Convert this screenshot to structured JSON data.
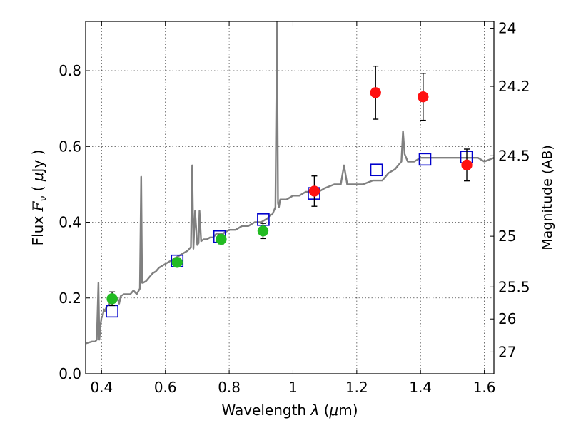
{
  "chart_data": {
    "type": "scatter",
    "xlabel": "Wavelength",
    "xlabel_symbol": "λ",
    "xlabel_unit_open": "(",
    "xlabel_unit_mu": "μ",
    "xlabel_unit_rest": "m)",
    "ylabel": "Flux",
    "ylabel_symbol": "F",
    "ylabel_subscript": "ν",
    "ylabel_unit_open": "(",
    "ylabel_unit_mu": "μ",
    "ylabel_unit_rest": "Jy",
    "ylabel_unit_close": ")",
    "y2label": "Magnitude (AB)",
    "xlim": [
      0.35,
      1.63
    ],
    "ylim": [
      0.0,
      0.93
    ],
    "grid": true,
    "x_ticks": [
      {
        "value": 0.4,
        "label": "0.4"
      },
      {
        "value": 0.6,
        "label": "0.6"
      },
      {
        "value": 0.8,
        "label": "0.8"
      },
      {
        "value": 1.0,
        "label": "1"
      },
      {
        "value": 1.2,
        "label": "1.2"
      },
      {
        "value": 1.4,
        "label": "1.4"
      },
      {
        "value": 1.6,
        "label": "1.6"
      }
    ],
    "y_ticks": [
      {
        "value": 0.0,
        "label": "0.0"
      },
      {
        "value": 0.2,
        "label": "0.2"
      },
      {
        "value": 0.4,
        "label": "0.4"
      },
      {
        "value": 0.6,
        "label": "0.6"
      },
      {
        "value": 0.8,
        "label": "0.8"
      }
    ],
    "y2_ticks": [
      {
        "mag": 24,
        "label": "24"
      },
      {
        "mag": 24.2,
        "label": "24.2"
      },
      {
        "mag": 24.5,
        "label": "24.5"
      },
      {
        "mag": 25,
        "label": "25"
      },
      {
        "mag": 25.5,
        "label": "25.5"
      },
      {
        "mag": 26,
        "label": "26"
      },
      {
        "mag": 27,
        "label": "27"
      }
    ],
    "series": [
      {
        "kind": "spectrum",
        "color": "#808080",
        "x": [
          0.35,
          0.37,
          0.38,
          0.385,
          0.39,
          0.393,
          0.397,
          0.4,
          0.403,
          0.407,
          0.41,
          0.415,
          0.42,
          0.43,
          0.44,
          0.45,
          0.455,
          0.46,
          0.47,
          0.48,
          0.49,
          0.5,
          0.51,
          0.52,
          0.524,
          0.527,
          0.53,
          0.54,
          0.55,
          0.56,
          0.57,
          0.58,
          0.59,
          0.6,
          0.62,
          0.64,
          0.66,
          0.67,
          0.68,
          0.684,
          0.688,
          0.693,
          0.7,
          0.704,
          0.707,
          0.712,
          0.72,
          0.73,
          0.74,
          0.75,
          0.76,
          0.78,
          0.8,
          0.82,
          0.84,
          0.86,
          0.88,
          0.9,
          0.92,
          0.93,
          0.935,
          0.94,
          0.945,
          0.95,
          0.953,
          0.956,
          0.96,
          0.98,
          1.0,
          1.02,
          1.04,
          1.06,
          1.08,
          1.1,
          1.13,
          1.15,
          1.16,
          1.17,
          1.19,
          1.22,
          1.25,
          1.28,
          1.3,
          1.32,
          1.33,
          1.34,
          1.345,
          1.35,
          1.36,
          1.38,
          1.4,
          1.43,
          1.46,
          1.5,
          1.55,
          1.58,
          1.6,
          1.63
        ],
        "y": [
          0.08,
          0.085,
          0.085,
          0.09,
          0.24,
          0.09,
          0.13,
          0.15,
          0.15,
          0.17,
          0.165,
          0.175,
          0.18,
          0.19,
          0.195,
          0.2,
          0.185,
          0.205,
          0.21,
          0.21,
          0.21,
          0.22,
          0.21,
          0.225,
          0.52,
          0.24,
          0.24,
          0.245,
          0.255,
          0.265,
          0.27,
          0.28,
          0.285,
          0.29,
          0.3,
          0.31,
          0.32,
          0.325,
          0.335,
          0.55,
          0.33,
          0.43,
          0.34,
          0.345,
          0.43,
          0.35,
          0.355,
          0.355,
          0.36,
          0.36,
          0.37,
          0.37,
          0.38,
          0.38,
          0.39,
          0.39,
          0.4,
          0.4,
          0.41,
          0.42,
          0.42,
          0.43,
          0.44,
          0.93,
          0.45,
          0.44,
          0.46,
          0.46,
          0.47,
          0.47,
          0.48,
          0.48,
          0.48,
          0.49,
          0.5,
          0.5,
          0.55,
          0.5,
          0.5,
          0.5,
          0.51,
          0.51,
          0.53,
          0.54,
          0.55,
          0.56,
          0.64,
          0.58,
          0.56,
          0.56,
          0.57,
          0.57,
          0.57,
          0.57,
          0.57,
          0.57,
          0.56,
          0.57
        ]
      },
      {
        "kind": "model_photometry",
        "color": "#0000cc",
        "x": [
          0.433,
          0.637,
          0.77,
          0.907,
          1.066,
          1.262,
          1.414,
          1.544
        ],
        "y": [
          0.165,
          0.298,
          0.362,
          0.407,
          0.476,
          0.538,
          0.566,
          0.572
        ]
      },
      {
        "kind": "observed_optical",
        "color": "#22bb22",
        "x": [
          0.433,
          0.637,
          0.775,
          0.906
        ],
        "y": [
          0.198,
          0.294,
          0.355,
          0.377
        ],
        "err": [
          0.018,
          0.012,
          0.012,
          0.02
        ]
      },
      {
        "kind": "observed_nir",
        "color": "#ff1111",
        "x": [
          1.067,
          1.259,
          1.408,
          1.545
        ],
        "y": [
          0.482,
          0.742,
          0.731,
          0.551
        ],
        "err": [
          0.04,
          0.07,
          0.062,
          0.042
        ]
      }
    ]
  }
}
